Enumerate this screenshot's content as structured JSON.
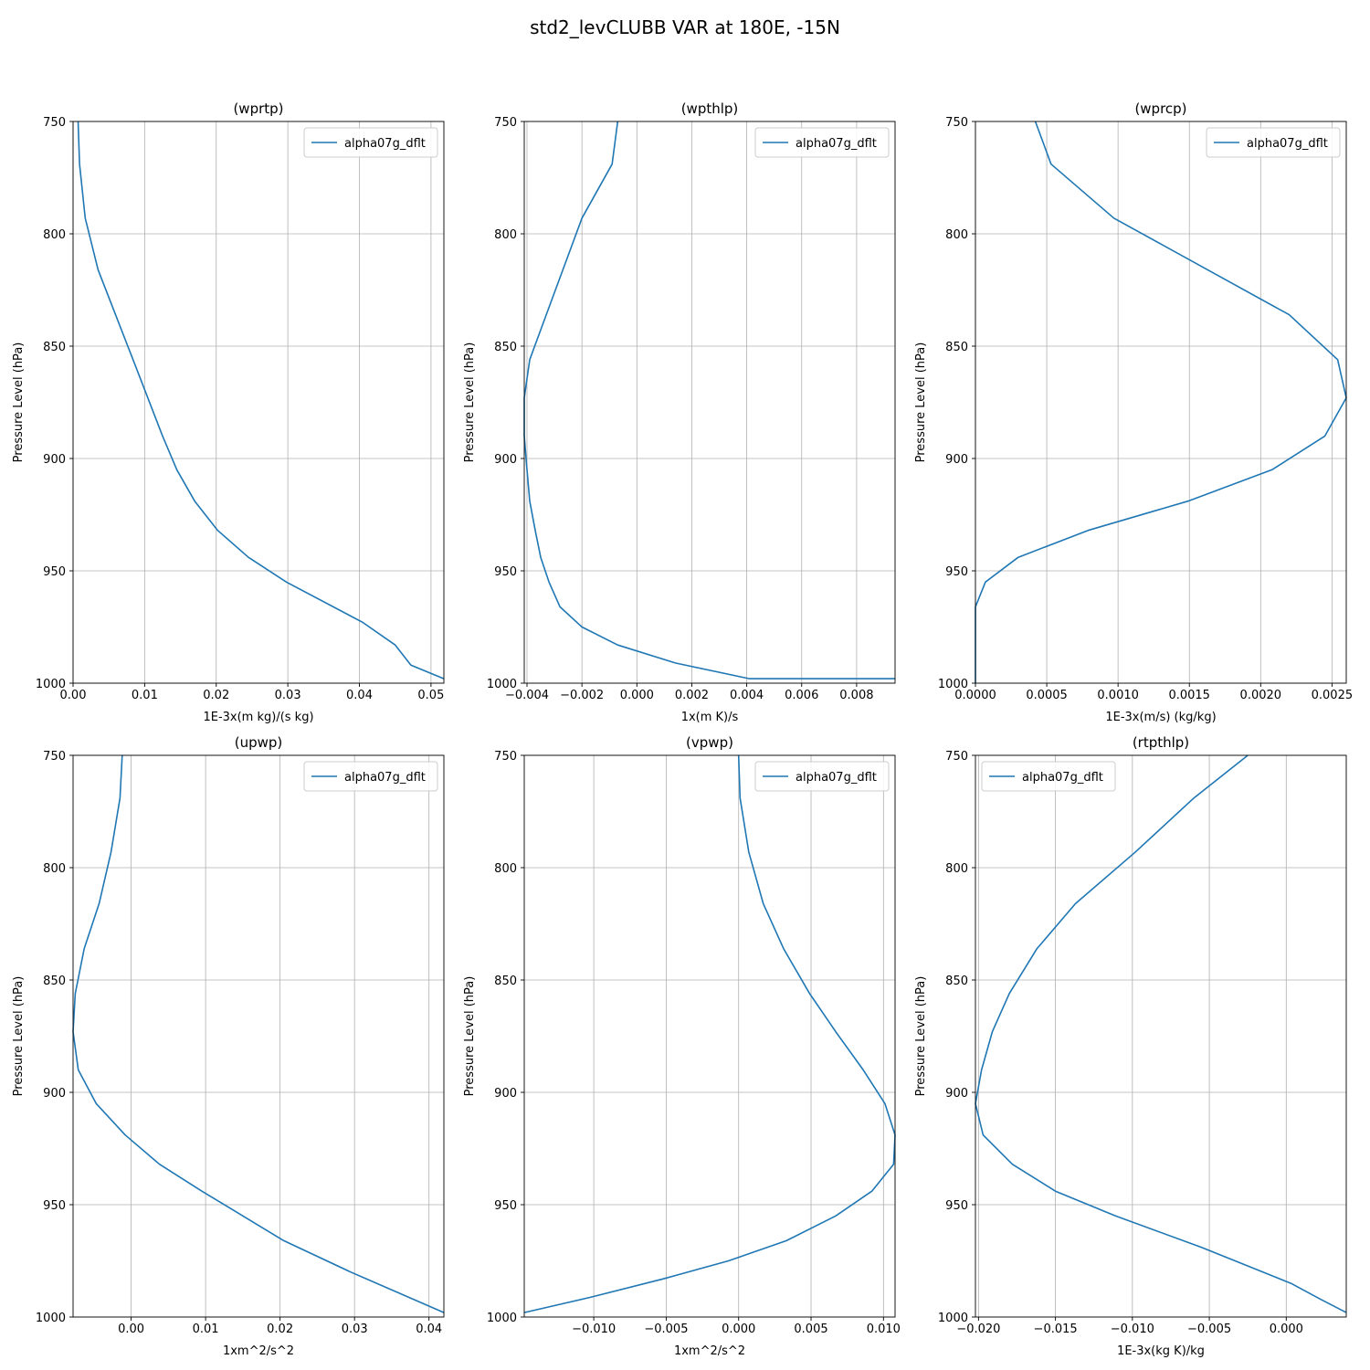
{
  "figure": {
    "suptitle": "std2_levCLUBB VAR at 180E, -15N"
  },
  "colors": {
    "series": "#1f77b4",
    "grid": "#b0b0b0",
    "axes": "#000000"
  },
  "chart_data": [
    {
      "type": "line",
      "title": "(wprtp)",
      "xlabel": "1E-3x(m kg)/(s kg)",
      "ylabel": "Pressure Level (hPa)",
      "xlim": [
        0,
        0.0518
      ],
      "ylim": [
        1000,
        750
      ],
      "y_inverted": true,
      "grid": true,
      "legend": "upper right",
      "xticks": [
        0.0,
        0.01,
        0.02,
        0.03,
        0.04,
        0.05
      ],
      "xtick_labels": [
        "0.00",
        "0.01",
        "0.02",
        "0.03",
        "0.04",
        "0.05"
      ],
      "yticks": [
        750,
        800,
        850,
        900,
        950,
        1000
      ],
      "series": [
        {
          "name": "alpha07g_dflt",
          "color": "#1f77b4",
          "x": [
            0.0007,
            0.0009,
            0.0017,
            0.0035,
            0.0085,
            0.0125,
            0.0145,
            0.017,
            0.0202,
            0.0245,
            0.0298,
            0.0405,
            0.045,
            0.0472,
            0.0518
          ],
          "y": [
            750,
            769,
            793,
            816,
            857,
            890,
            905,
            919,
            932,
            944,
            955,
            973,
            983,
            992,
            998
          ]
        }
      ]
    },
    {
      "type": "line",
      "title": "(wpthlp)",
      "xlabel": "1x(m K)/s",
      "ylabel": "Pressure Level (hPa)",
      "xlim": [
        -0.0041,
        0.0094
      ],
      "ylim": [
        1000,
        750
      ],
      "y_inverted": true,
      "grid": true,
      "legend": "upper right",
      "xticks": [
        -0.004,
        -0.002,
        0.0,
        0.002,
        0.004,
        0.006,
        0.008
      ],
      "xtick_labels": [
        "−0.004",
        "−0.002",
        "0.000",
        "0.002",
        "0.004",
        "0.006",
        "0.008"
      ],
      "yticks": [
        750,
        800,
        850,
        900,
        950,
        1000
      ],
      "series": [
        {
          "name": "alpha07g_dflt",
          "color": "#1f77b4",
          "x": [
            -0.0007,
            -0.0009,
            -0.002,
            -0.0033,
            -0.0039,
            -0.0041,
            -0.0041,
            -0.004,
            -0.0039,
            -0.0037,
            -0.0035,
            -0.0032,
            -0.0028,
            -0.002,
            -0.0007,
            0.0014,
            0.0041,
            0.0094
          ],
          "y": [
            750,
            769,
            793,
            836,
            856,
            873,
            890,
            905,
            919,
            932,
            944,
            955,
            966,
            975,
            983,
            991,
            998,
            998
          ]
        }
      ]
    },
    {
      "type": "line",
      "title": "(wprcp)",
      "xlabel": "1E-3x(m/s) (kg/kg)",
      "ylabel": "Pressure Level (hPa)",
      "xlim": [
        0,
        0.0026
      ],
      "ylim": [
        1000,
        750
      ],
      "y_inverted": true,
      "grid": true,
      "legend": "upper right",
      "xticks": [
        0.0,
        0.0005,
        0.001,
        0.0015,
        0.002,
        0.0025
      ],
      "xtick_labels": [
        "0.0000",
        "0.0005",
        "0.0010",
        "0.0015",
        "0.0020",
        "0.0025"
      ],
      "yticks": [
        750,
        800,
        850,
        900,
        950,
        1000
      ],
      "series": [
        {
          "name": "alpha07g_dflt",
          "color": "#1f77b4",
          "x": [
            0.00042,
            0.00053,
            0.00097,
            0.0022,
            0.00254,
            0.0026,
            0.00245,
            0.00208,
            0.00149,
            0.00079,
            0.0003,
            7e-05,
            0.0,
            0.0
          ],
          "y": [
            750,
            769,
            793,
            836,
            856,
            873,
            890,
            905,
            919,
            932,
            944,
            955,
            966,
            1000
          ]
        }
      ]
    },
    {
      "type": "line",
      "title": "(upwp)",
      "xlabel": "1xm^2/s^2",
      "ylabel": "Pressure Level (hPa)",
      "xlim": [
        -0.0078,
        0.042
      ],
      "ylim": [
        1000,
        750
      ],
      "y_inverted": true,
      "grid": true,
      "legend": "upper right",
      "xticks": [
        0.0,
        0.01,
        0.02,
        0.03,
        0.04
      ],
      "xtick_labels": [
        "0.00",
        "0.01",
        "0.02",
        "0.03",
        "0.04"
      ],
      "yticks": [
        750,
        800,
        850,
        900,
        950,
        1000
      ],
      "series": [
        {
          "name": "alpha07g_dflt",
          "color": "#1f77b4",
          "x": [
            -0.0012,
            -0.0015,
            -0.0027,
            -0.0043,
            -0.0063,
            -0.0075,
            -0.0078,
            -0.0071,
            -0.0047,
            -0.0008,
            0.0038,
            0.0095,
            0.015,
            0.0205,
            0.0295,
            0.042
          ],
          "y": [
            750,
            769,
            793,
            816,
            836,
            856,
            873,
            890,
            905,
            919,
            932,
            944,
            955,
            966,
            980,
            998
          ]
        }
      ]
    },
    {
      "type": "line",
      "title": "(vpwp)",
      "xlabel": "1xm^2/s^2",
      "ylabel": "Pressure Level (hPa)",
      "xlim": [
        -0.0148,
        0.0108
      ],
      "ylim": [
        1000,
        750
      ],
      "y_inverted": true,
      "grid": true,
      "legend": "upper right",
      "xticks": [
        -0.01,
        -0.005,
        0.0,
        0.005,
        0.01
      ],
      "xtick_labels": [
        "−0.010",
        "−0.005",
        "0.000",
        "0.005",
        "0.010"
      ],
      "yticks": [
        750,
        800,
        850,
        900,
        950,
        1000
      ],
      "series": [
        {
          "name": "alpha07g_dflt",
          "color": "#1f77b4",
          "x": [
            0.0,
            0.0001,
            0.0007,
            0.0017,
            0.0031,
            0.0049,
            0.0067,
            0.0086,
            0.0101,
            0.0108,
            0.0107,
            0.0092,
            0.0067,
            0.0033,
            -0.0007,
            -0.0052,
            -0.0101,
            -0.0148
          ],
          "y": [
            750,
            769,
            793,
            816,
            836,
            856,
            873,
            890,
            905,
            919,
            932,
            944,
            955,
            966,
            975,
            983,
            991,
            998
          ]
        }
      ]
    },
    {
      "type": "line",
      "title": "(rtpthlp)",
      "xlabel": "1E-3x(kg K)/kg",
      "ylabel": "Pressure Level (hPa)",
      "xlim": [
        -0.0202,
        0.0039
      ],
      "ylim": [
        1000,
        750
      ],
      "y_inverted": true,
      "grid": true,
      "legend": "upper left",
      "xticks": [
        -0.02,
        -0.015,
        -0.01,
        -0.005,
        0.0
      ],
      "xtick_labels": [
        "−0.020",
        "−0.015",
        "−0.010",
        "−0.005",
        "0.000"
      ],
      "yticks": [
        750,
        800,
        850,
        900,
        950,
        1000
      ],
      "series": [
        {
          "name": "alpha07g_dflt",
          "color": "#1f77b4",
          "x": [
            -0.0025,
            -0.006,
            -0.0098,
            -0.0137,
            -0.0162,
            -0.018,
            -0.0191,
            -0.0198,
            -0.0202,
            -0.0197,
            -0.0178,
            -0.015,
            -0.0111,
            -0.0055,
            0.0003,
            0.0022,
            0.0039
          ],
          "y": [
            750,
            769,
            793,
            816,
            836,
            856,
            873,
            890,
            905,
            919,
            932,
            944,
            955,
            969,
            985,
            992,
            998
          ]
        }
      ]
    }
  ]
}
